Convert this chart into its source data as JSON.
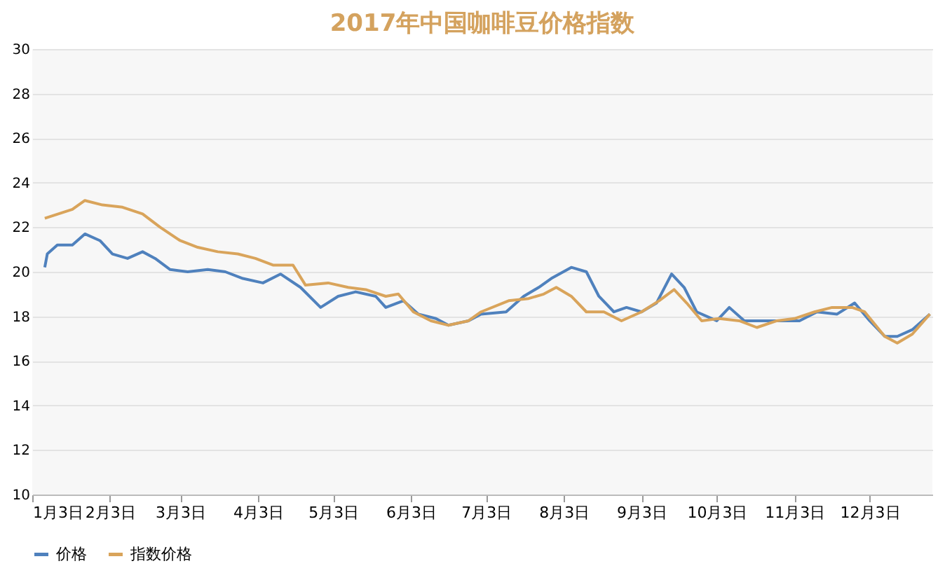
{
  "chart_data": {
    "type": "line",
    "title": "2017年中国咖啡豆价格指数",
    "xlim": [
      "2017-01-03",
      "2017-12-28"
    ],
    "xticks": [
      {
        "value": "2017-01-03",
        "label": "1月3日"
      },
      {
        "value": "2017-02-03",
        "label": "2月3日"
      },
      {
        "value": "2017-03-03",
        "label": "3月3日"
      },
      {
        "value": "2017-04-03",
        "label": "4月3日"
      },
      {
        "value": "2017-05-03",
        "label": "5月3日"
      },
      {
        "value": "2017-06-03",
        "label": "6月3日"
      },
      {
        "value": "2017-07-03",
        "label": "7月3日"
      },
      {
        "value": "2017-08-03",
        "label": "8月3日"
      },
      {
        "value": "2017-09-03",
        "label": "9月3日"
      },
      {
        "value": "2017-10-03",
        "label": "10月3日"
      },
      {
        "value": "2017-11-03",
        "label": "11月3日"
      },
      {
        "value": "2017-12-03",
        "label": "12月3日"
      }
    ],
    "ylim": [
      10,
      30
    ],
    "yticks": [
      10,
      12,
      14,
      16,
      18,
      20,
      22,
      24,
      26,
      28,
      30
    ],
    "grid": "y",
    "legend": "bottom",
    "line_style": "solid",
    "marker": "none",
    "series": [
      {
        "name": "价格",
        "color": "#4f81bd",
        "x": [
          "2017-01-08",
          "2017-01-09",
          "2017-01-13",
          "2017-01-19",
          "2017-01-24",
          "2017-01-30",
          "2017-02-04",
          "2017-02-10",
          "2017-02-16",
          "2017-02-21",
          "2017-02-27",
          "2017-03-06",
          "2017-03-14",
          "2017-03-21",
          "2017-03-28",
          "2017-04-05",
          "2017-04-12",
          "2017-04-20",
          "2017-04-28",
          "2017-05-05",
          "2017-05-12",
          "2017-05-20",
          "2017-05-24",
          "2017-05-31",
          "2017-06-06",
          "2017-06-13",
          "2017-06-18",
          "2017-06-26",
          "2017-07-01",
          "2017-07-11",
          "2017-07-18",
          "2017-07-24",
          "2017-07-29",
          "2017-08-06",
          "2017-08-12",
          "2017-08-17",
          "2017-08-23",
          "2017-08-28",
          "2017-09-03",
          "2017-09-09",
          "2017-09-15",
          "2017-09-20",
          "2017-09-25",
          "2017-10-03",
          "2017-10-08",
          "2017-10-14",
          "2017-10-21",
          "2017-10-29",
          "2017-11-05",
          "2017-11-12",
          "2017-11-20",
          "2017-11-27",
          "2017-12-03",
          "2017-12-09",
          "2017-12-14",
          "2017-12-20",
          "2017-12-27"
        ],
        "values": [
          20.2,
          20.8,
          21.2,
          21.2,
          21.7,
          21.4,
          20.8,
          20.6,
          20.9,
          20.6,
          20.1,
          20.0,
          20.1,
          20.0,
          19.7,
          19.5,
          19.9,
          19.3,
          18.4,
          18.9,
          19.1,
          18.9,
          18.4,
          18.7,
          18.1,
          17.9,
          17.6,
          17.8,
          18.1,
          18.2,
          18.9,
          19.3,
          19.7,
          20.2,
          20.0,
          18.9,
          18.2,
          18.4,
          18.2,
          18.6,
          19.9,
          19.3,
          18.2,
          17.8,
          18.4,
          17.8,
          17.8,
          17.8,
          17.8,
          18.2,
          18.1,
          18.6,
          17.8,
          17.1,
          17.1,
          17.4,
          18.1
        ]
      },
      {
        "name": "指数价格",
        "color": "#d9a45b",
        "x": [
          "2017-01-08",
          "2017-01-19",
          "2017-01-24",
          "2017-01-31",
          "2017-02-08",
          "2017-02-16",
          "2017-02-23",
          "2017-03-03",
          "2017-03-10",
          "2017-03-18",
          "2017-03-26",
          "2017-04-02",
          "2017-04-09",
          "2017-04-17",
          "2017-04-22",
          "2017-05-01",
          "2017-05-09",
          "2017-05-16",
          "2017-05-24",
          "2017-05-29",
          "2017-06-04",
          "2017-06-11",
          "2017-06-18",
          "2017-06-26",
          "2017-07-01",
          "2017-07-12",
          "2017-07-20",
          "2017-07-26",
          "2017-07-31",
          "2017-08-06",
          "2017-08-12",
          "2017-08-19",
          "2017-08-26",
          "2017-09-03",
          "2017-09-10",
          "2017-09-16",
          "2017-09-21",
          "2017-09-27",
          "2017-10-04",
          "2017-10-12",
          "2017-10-19",
          "2017-10-27",
          "2017-11-03",
          "2017-11-11",
          "2017-11-18",
          "2017-11-26",
          "2017-12-01",
          "2017-12-09",
          "2017-12-14",
          "2017-12-20",
          "2017-12-27"
        ],
        "values": [
          22.4,
          22.8,
          23.2,
          23.0,
          22.9,
          22.6,
          22.0,
          21.4,
          21.1,
          20.9,
          20.8,
          20.6,
          20.3,
          20.3,
          19.4,
          19.5,
          19.3,
          19.2,
          18.9,
          19.0,
          18.2,
          17.8,
          17.6,
          17.8,
          18.2,
          18.7,
          18.8,
          19.0,
          19.3,
          18.9,
          18.2,
          18.2,
          17.8,
          18.2,
          18.7,
          19.2,
          18.6,
          17.8,
          17.9,
          17.8,
          17.5,
          17.8,
          17.9,
          18.2,
          18.4,
          18.4,
          18.2,
          17.1,
          16.8,
          17.2,
          18.1
        ]
      }
    ]
  }
}
